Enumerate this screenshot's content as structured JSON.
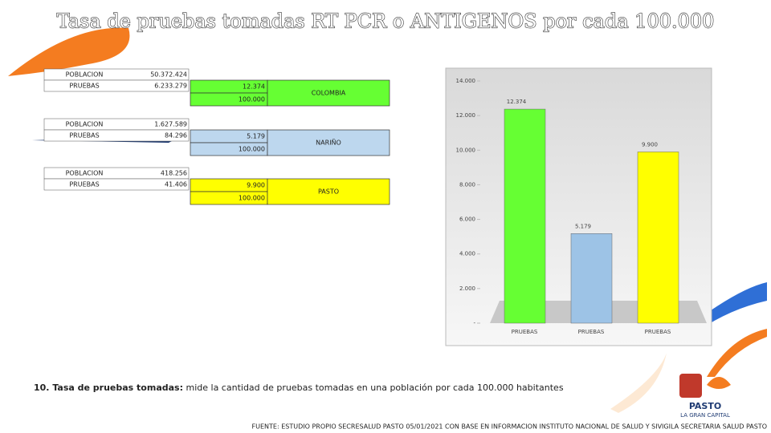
{
  "title": "Tasa de pruebas tomadas RT PCR o ANTIGENOS por cada 100.000",
  "tables": [
    {
      "rows": [
        [
          "POBLACION",
          "50.372.424"
        ],
        [
          "PRUEBAS",
          "6.233.279"
        ]
      ],
      "rate": "12.374",
      "base": "100.000",
      "region": "COLOMBIA",
      "color": "#66ff33"
    },
    {
      "rows": [
        [
          "POBLACION",
          "1.627.589"
        ],
        [
          "PRUEBAS",
          "84.296"
        ]
      ],
      "rate": "5.179",
      "base": "100.000",
      "region": "NARIÑO",
      "color": "#bdd7ee"
    },
    {
      "rows": [
        [
          "POBLACION",
          "418.256"
        ],
        [
          "PRUEBAS",
          "41.406"
        ]
      ],
      "rate": "9.900",
      "base": "100.000",
      "region": "PASTO",
      "color": "#ffff00"
    }
  ],
  "chart_data": {
    "type": "bar",
    "categories": [
      "PRUEBAS",
      "PRUEBAS",
      "PRUEBAS"
    ],
    "values": [
      12374,
      5179,
      9900
    ],
    "value_labels": [
      "12.374",
      "5.179",
      "9.900"
    ],
    "colors": [
      "#66ff33",
      "#9dc3e6",
      "#ffff00"
    ],
    "ylim": [
      0,
      14000
    ],
    "yticks": [
      {
        "value": 0,
        "label": "-"
      },
      {
        "value": 2000,
        "label": "2.000"
      },
      {
        "value": 4000,
        "label": "4.000"
      },
      {
        "value": 6000,
        "label": "6.000"
      },
      {
        "value": 8000,
        "label": "8.000"
      },
      {
        "value": 10000,
        "label": "10.000"
      },
      {
        "value": 12000,
        "label": "12.000"
      },
      {
        "value": 14000,
        "label": "14.000"
      }
    ]
  },
  "note": {
    "term": "10. Tasa de pruebas tomadas:",
    "text": " mide la cantidad de pruebas tomadas en una población por cada 100.000 habitantes"
  },
  "source": "FUENTE: ESTUDIO PROPIO SECRESALUD PASTO 05/01/2021 CON BASE EN INFORMACION INSTITUTO NACIONAL DE SALUD Y SIVIGILA SECRETARIA SALUD PASTO",
  "logo": {
    "name": "PASTO",
    "tagline": "LA GRAN CAPITAL"
  }
}
